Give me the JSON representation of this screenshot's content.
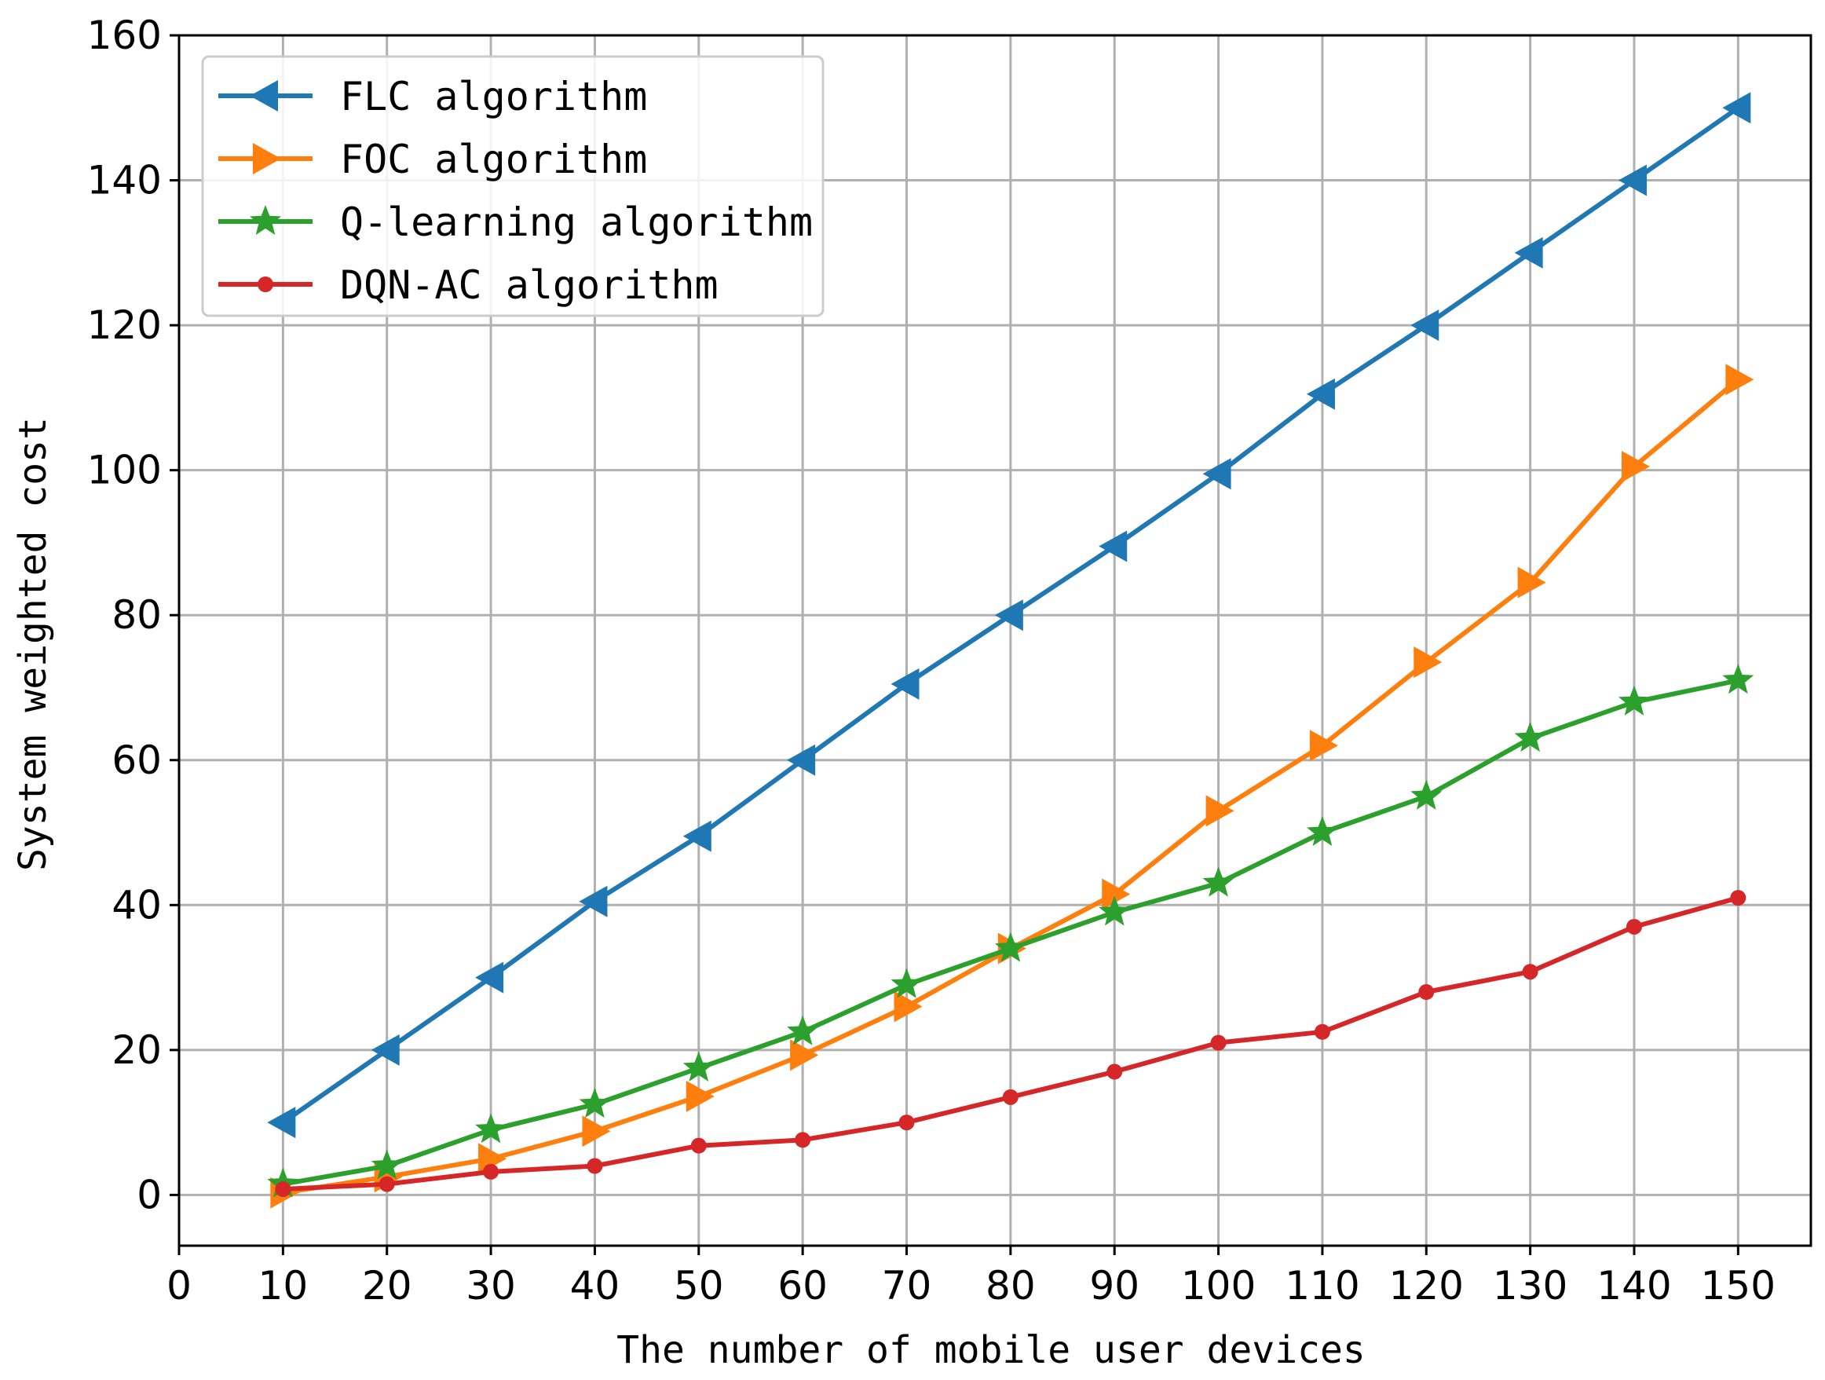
{
  "chart_data": {
    "type": "line",
    "title": "",
    "xlabel": "The number of mobile user devices",
    "ylabel": "System weighted cost",
    "xlim": [
      0,
      157
    ],
    "ylim": [
      -7,
      160
    ],
    "xticks": [
      0,
      10,
      20,
      30,
      40,
      50,
      60,
      70,
      80,
      90,
      100,
      110,
      120,
      130,
      140,
      150
    ],
    "xtick_labels": [
      "0",
      "10",
      "20",
      "30",
      "40",
      "50",
      "60",
      "70",
      "80",
      "90",
      "100",
      "110",
      "120",
      "130",
      "140",
      "150"
    ],
    "yticks": [
      0,
      20,
      40,
      60,
      80,
      100,
      120,
      140,
      160
    ],
    "ytick_labels": [
      "0",
      "20",
      "40",
      "60",
      "80",
      "100",
      "120",
      "140",
      "160"
    ],
    "grid": true,
    "legend_position": "top-left",
    "x": [
      10,
      20,
      30,
      40,
      50,
      60,
      70,
      80,
      90,
      100,
      110,
      120,
      130,
      140,
      150
    ],
    "series": [
      {
        "name": "FLC algorithm",
        "color": "#1f77b4",
        "marker": "triangle-left",
        "values": [
          10,
          20,
          30,
          40.5,
          49.5,
          60,
          70.5,
          80,
          89.5,
          99.5,
          110.5,
          120,
          130,
          140,
          150
        ]
      },
      {
        "name": "FOC algorithm",
        "color": "#ff7f0e",
        "marker": "triangle-right",
        "values": [
          0.3,
          2.5,
          5,
          8.8,
          13.6,
          19.3,
          26,
          34,
          41.5,
          53,
          62,
          73.5,
          84.5,
          100.5,
          112.5
        ]
      },
      {
        "name": "Q-learning algorithm",
        "color": "#2ca02c",
        "marker": "star",
        "values": [
          1.5,
          4,
          9,
          12.5,
          17.5,
          22.5,
          29,
          34,
          39,
          43,
          50,
          55,
          63,
          68,
          71
        ]
      },
      {
        "name": "DQN-AC algorithm",
        "color": "#d62728",
        "marker": "circle",
        "values": [
          0.8,
          1.5,
          3.2,
          4,
          6.8,
          7.6,
          10,
          13.5,
          17,
          21,
          22.5,
          28,
          30.8,
          37,
          41
        ]
      }
    ]
  }
}
